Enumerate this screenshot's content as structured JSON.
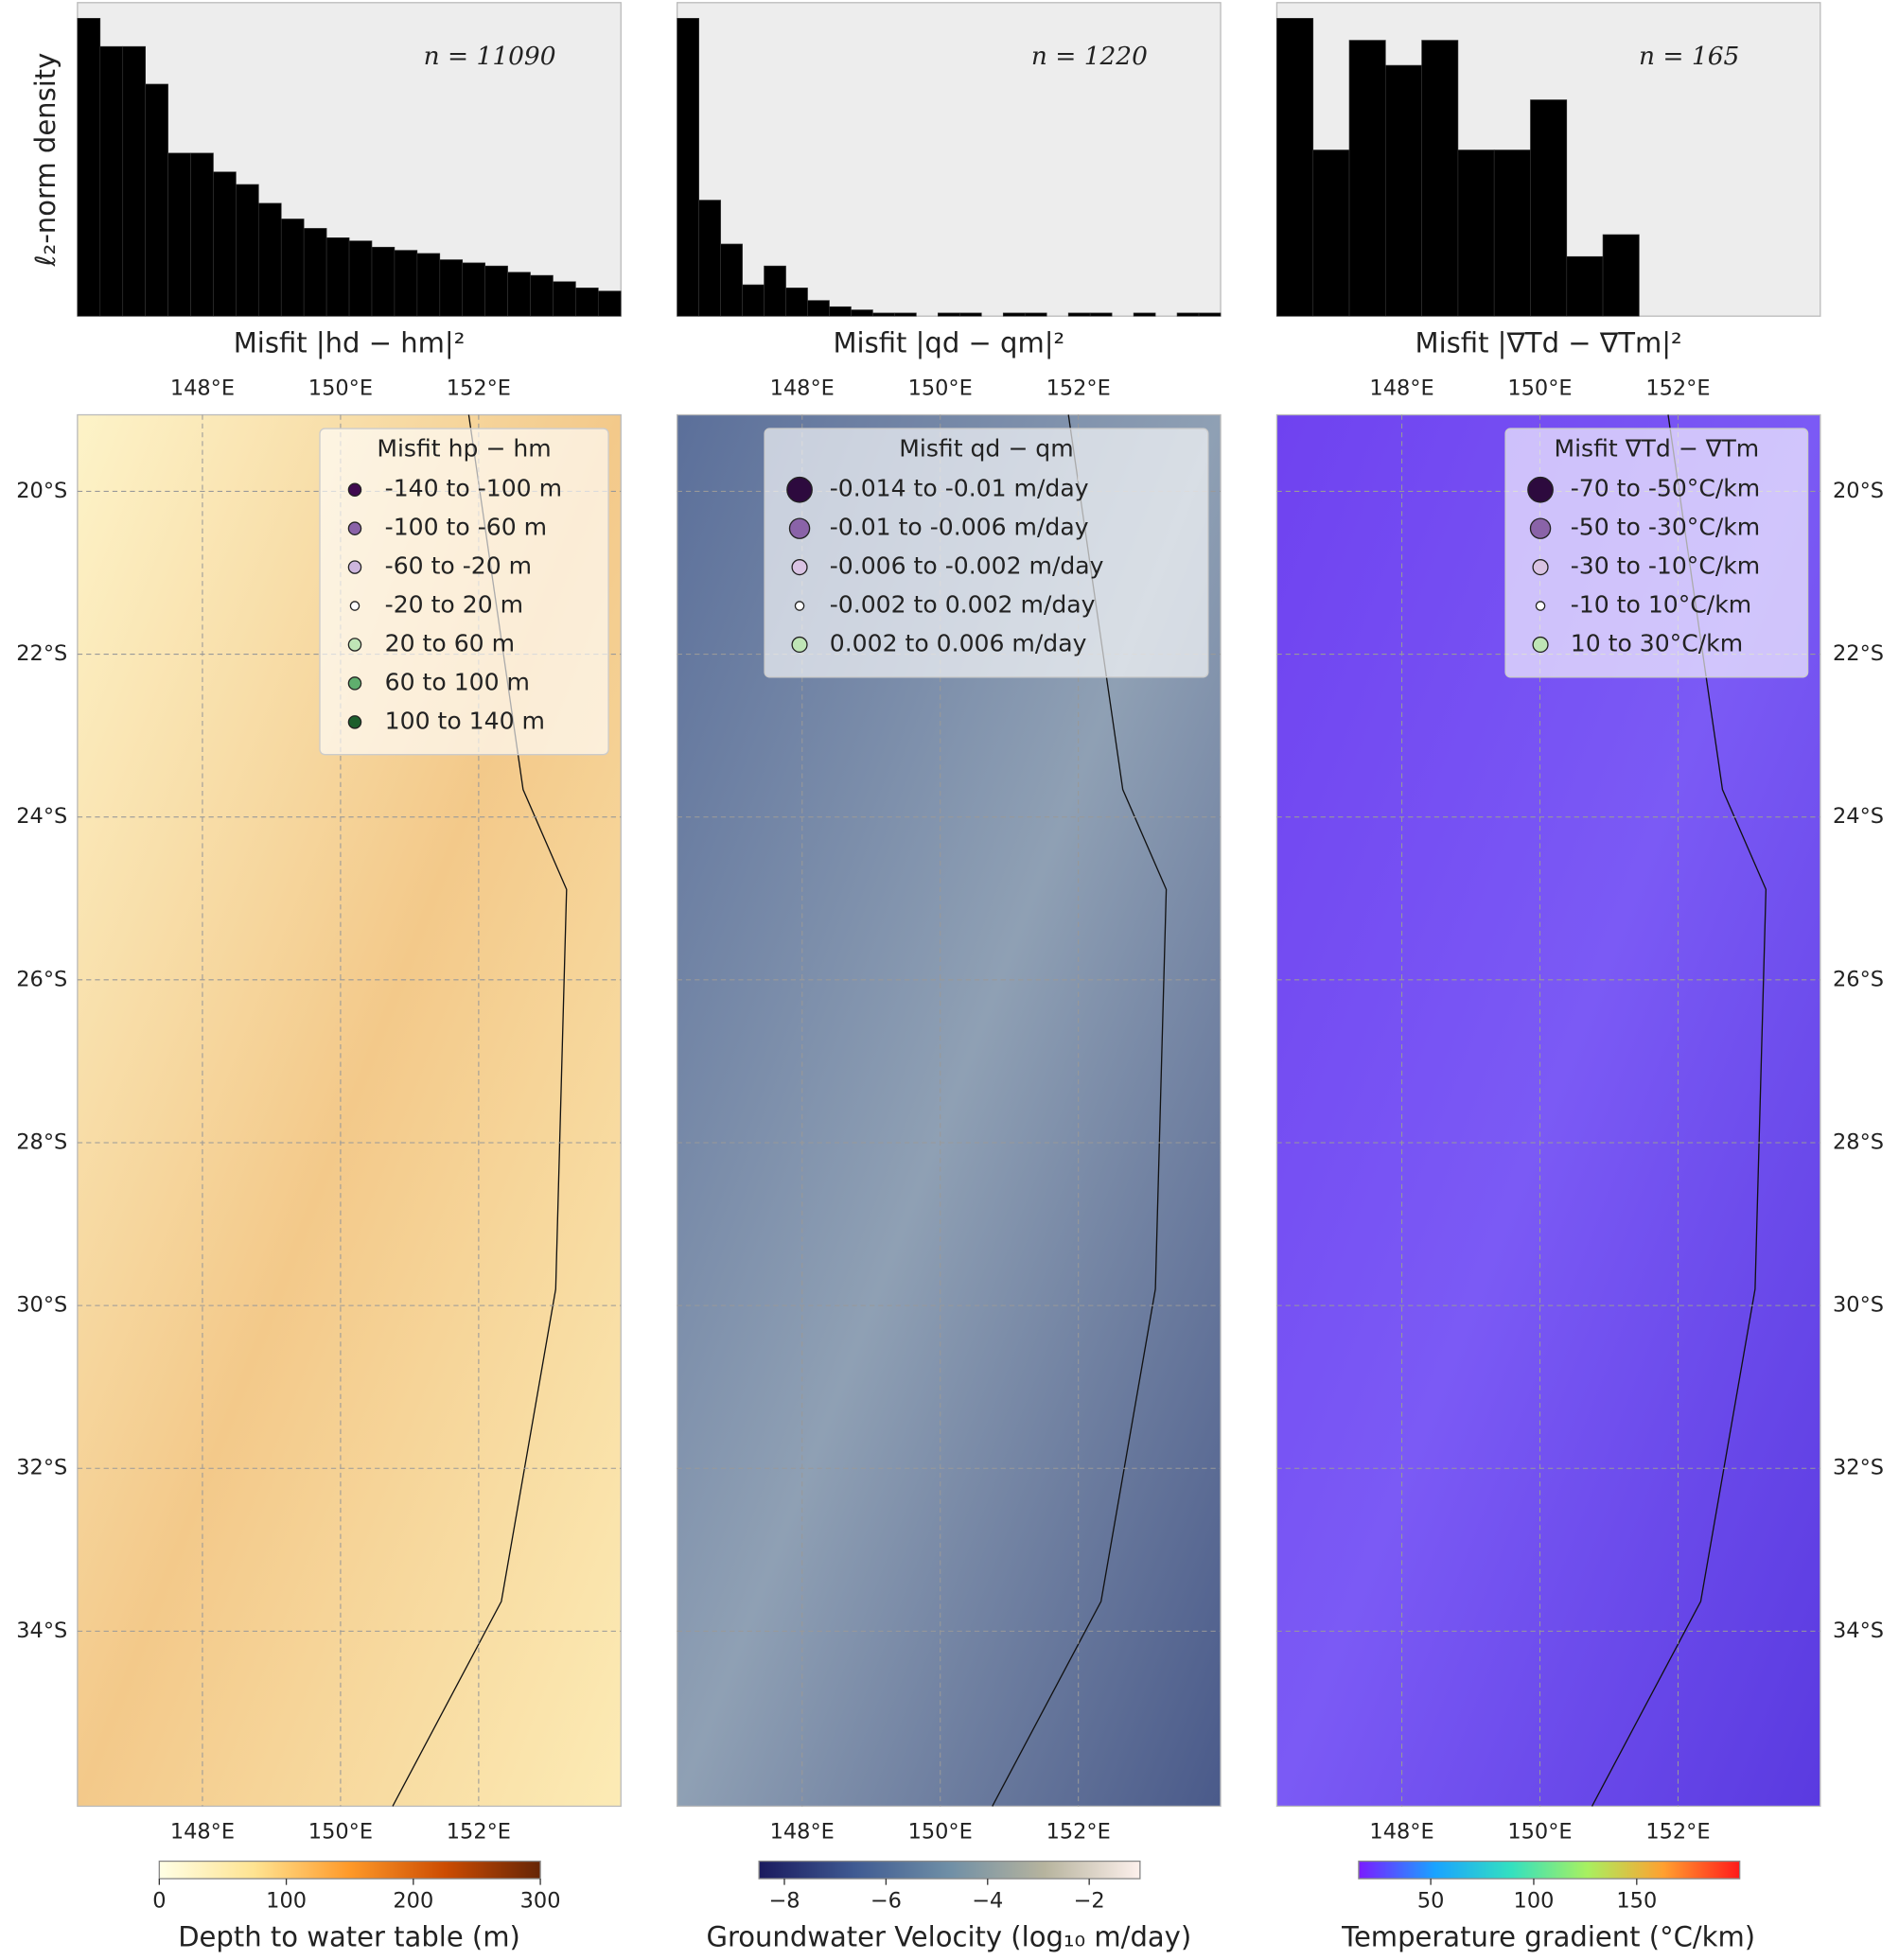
{
  "chart_data": [
    {
      "type": "bar",
      "ylabel": "ℓ₂-norm density",
      "xlabel": "Misfit |hd − hm|²",
      "annotation": "n = 11090",
      "color": "#000000",
      "ylim": [
        0,
        1
      ],
      "values": [
        0.95,
        0.86,
        0.86,
        0.74,
        0.52,
        0.52,
        0.46,
        0.42,
        0.36,
        0.31,
        0.28,
        0.25,
        0.24,
        0.22,
        0.21,
        0.2,
        0.18,
        0.17,
        0.16,
        0.14,
        0.13,
        0.11,
        0.09,
        0.08
      ]
    },
    {
      "type": "bar",
      "xlabel": "Misfit |qd − qm|²",
      "annotation": "n = 1220",
      "color": "#000000",
      "ylim": [
        0,
        1
      ],
      "values": [
        0.95,
        0.37,
        0.23,
        0.1,
        0.16,
        0.09,
        0.05,
        0.03,
        0.02,
        0.01,
        0.01,
        0,
        0.01,
        0.01,
        0,
        0.01,
        0.01,
        0,
        0.01,
        0.01,
        0,
        0.01,
        0,
        0.01,
        0.01
      ]
    },
    {
      "type": "bar",
      "xlabel": "Misfit |∇Td − ∇Tm|²",
      "annotation": "n = 165",
      "color": "#000000",
      "ylim": [
        0,
        1
      ],
      "values": [
        0.95,
        0.53,
        0.88,
        0.8,
        0.88,
        0.53,
        0.53,
        0.69,
        0.19,
        0.26,
        0,
        0,
        0,
        0,
        0
      ]
    },
    {
      "type": "map",
      "xlim": [
        146.19,
        154.06
      ],
      "ylim": [
        -36.15,
        -19.06
      ],
      "grid": true,
      "ytick_side": "left",
      "xticks": [
        {
          "value": 148,
          "label": "148°E"
        },
        {
          "value": 150,
          "label": "150°E"
        },
        {
          "value": 152,
          "label": "152°E"
        }
      ],
      "yticks": [
        {
          "value": -20,
          "label": "20°S"
        },
        {
          "value": -22,
          "label": "22°S"
        },
        {
          "value": -24,
          "label": "24°S"
        },
        {
          "value": -26,
          "label": "26°S"
        },
        {
          "value": -28,
          "label": "28°S"
        },
        {
          "value": -30,
          "label": "30°S"
        },
        {
          "value": -32,
          "label": "32°S"
        },
        {
          "value": -34,
          "label": "34°S"
        }
      ],
      "legend": {
        "title": "Misfit  hp − hm",
        "entries": [
          {
            "label": "-140 to -100 m",
            "color": "#3f0a4f"
          },
          {
            "label": "-100 to -60 m",
            "color": "#8a63a8"
          },
          {
            "label": "-60 to -20 m",
            "color": "#cdb6dd"
          },
          {
            "label": "-20 to 20 m",
            "color": "#ffffff"
          },
          {
            "label": "20 to 60 m",
            "color": "#bfe5b6"
          },
          {
            "label": "60 to 100 m",
            "color": "#5fae6e"
          },
          {
            "label": "100 to 140 m",
            "color": "#1b5e2c"
          }
        ]
      },
      "colorbar": {
        "label": "Depth to water table (m)",
        "lim": [
          0,
          300
        ],
        "ticks": [
          0,
          100,
          200,
          300
        ],
        "colors": [
          "#ffffe5",
          "#fee391",
          "#fe9929",
          "#cc4c02",
          "#662506"
        ]
      }
    },
    {
      "type": "map",
      "xlim": [
        146.19,
        154.06
      ],
      "ylim": [
        -36.15,
        -19.06
      ],
      "grid": true,
      "xticks": [
        {
          "value": 148,
          "label": "148°E"
        },
        {
          "value": 150,
          "label": "150°E"
        },
        {
          "value": 152,
          "label": "152°E"
        }
      ],
      "legend": {
        "title": "Misfit  qd − qm",
        "entries": [
          {
            "label": "-0.014 to -0.01 m/day",
            "color": "#2d0a3e"
          },
          {
            "label": "-0.01 to -0.006 m/day",
            "color": "#8a63a8"
          },
          {
            "label": "-0.006 to -0.002 m/day",
            "color": "#d9c3e3"
          },
          {
            "label": "-0.002 to 0.002 m/day",
            "color": "#ffffff"
          },
          {
            "label": "0.002 to 0.006 m/day",
            "color": "#bfe5b6"
          }
        ]
      },
      "colorbar": {
        "label": "Groundwater Velocity (log₁₀ m/day)",
        "lim": [
          -8.5,
          -1
        ],
        "ticks": [
          {
            "value": -8,
            "label": "−8"
          },
          {
            "value": -6,
            "label": "−6"
          },
          {
            "value": -4,
            "label": "−4"
          },
          {
            "value": -2,
            "label": "−2"
          }
        ],
        "colors": [
          "#1a1a5e",
          "#3f5a92",
          "#6f8fa6",
          "#b7b49e",
          "#fdf0ec"
        ]
      }
    },
    {
      "type": "map",
      "xlim": [
        146.19,
        154.06
      ],
      "ylim": [
        -36.15,
        -19.06
      ],
      "grid": true,
      "ytick_side": "right",
      "xticks": [
        {
          "value": 148,
          "label": "148°E"
        },
        {
          "value": 150,
          "label": "150°E"
        },
        {
          "value": 152,
          "label": "152°E"
        }
      ],
      "yticks": [
        {
          "value": -20,
          "label": "20°S"
        },
        {
          "value": -22,
          "label": "22°S"
        },
        {
          "value": -24,
          "label": "24°S"
        },
        {
          "value": -26,
          "label": "26°S"
        },
        {
          "value": -28,
          "label": "28°S"
        },
        {
          "value": -30,
          "label": "30°S"
        },
        {
          "value": -32,
          "label": "32°S"
        },
        {
          "value": -34,
          "label": "34°S"
        }
      ],
      "legend": {
        "title": "Misfit  ∇Td − ∇Tm",
        "entries": [
          {
            "label": "-70 to -50°C/km",
            "color": "#2d0a3e"
          },
          {
            "label": "-50 to -30°C/km",
            "color": "#8a63a8"
          },
          {
            "label": "-30 to -10°C/km",
            "color": "#d9c3e3"
          },
          {
            "label": "-10 to 10°C/km",
            "color": "#ffffff"
          },
          {
            "label": "10 to 30°C/km",
            "color": "#bfe5b6"
          }
        ]
      },
      "colorbar": {
        "label": "Temperature gradient (°C/km)",
        "lim": [
          15,
          200
        ],
        "ticks": [
          50,
          100,
          150
        ],
        "colors": [
          "#7a1cff",
          "#1aa3ff",
          "#33e0c0",
          "#a8f060",
          "#ffa030",
          "#ff1a1a"
        ]
      }
    }
  ]
}
